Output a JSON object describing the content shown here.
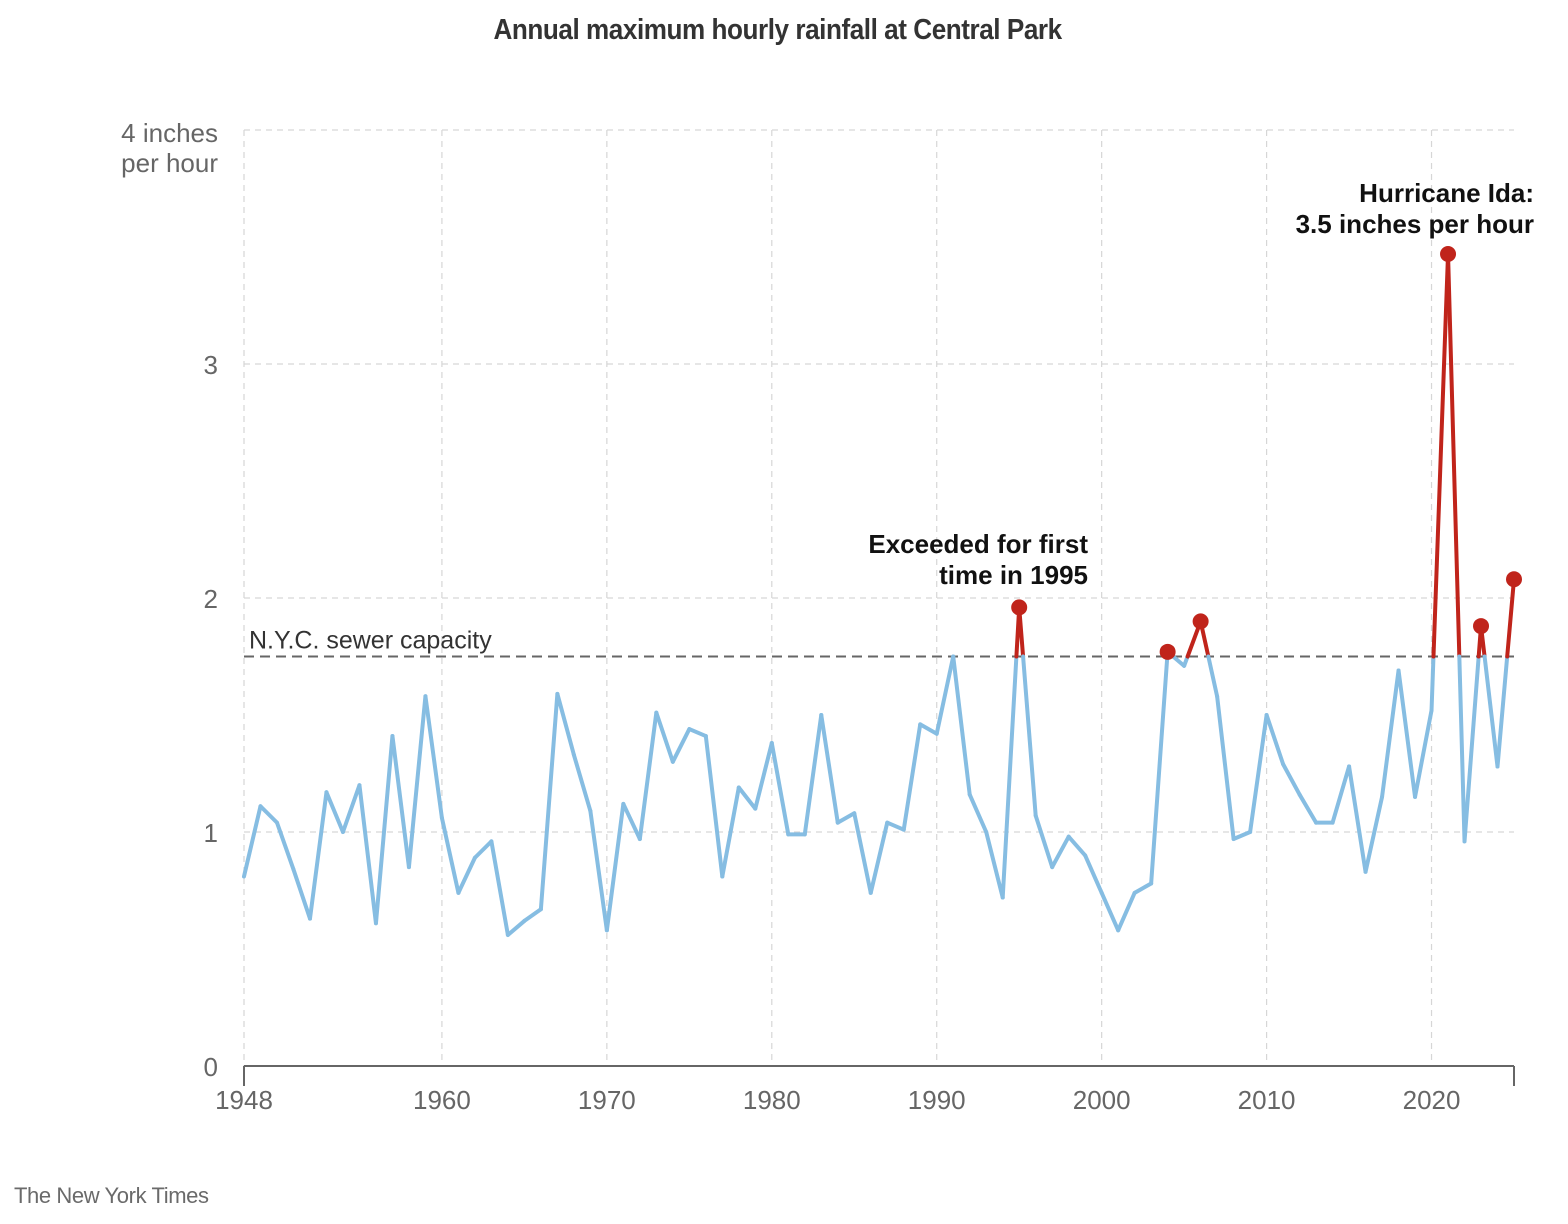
{
  "chart_data": {
    "type": "line",
    "title": "Annual maximum hourly rainfall at Central Park",
    "xlabel": "",
    "ylabel": "",
    "y_unit_label": [
      "4 inches",
      "per hour"
    ],
    "ylim": [
      0,
      4
    ],
    "yticks": [
      0,
      1,
      2,
      3,
      4
    ],
    "ytick_labels": [
      "0",
      "1",
      "2",
      "3",
      ""
    ],
    "xlim": [
      1948,
      2025
    ],
    "xticks": [
      1948,
      1960,
      1970,
      1980,
      1990,
      2000,
      2010,
      2020
    ],
    "xtick_labels": [
      "1948",
      "1960",
      "1970",
      "1980",
      "1990",
      "2000",
      "2010",
      "2020"
    ],
    "grid": true,
    "reference_line": {
      "label": "N.Y.C. sewer capacity",
      "value": 1.75
    },
    "colors": {
      "below": "#86bde2",
      "above": "#c0241b",
      "grid": "#d6d6d6",
      "reference": "#666666",
      "axis": "#666666"
    },
    "x": [
      1948,
      1949,
      1950,
      1951,
      1952,
      1953,
      1954,
      1955,
      1956,
      1957,
      1958,
      1959,
      1960,
      1961,
      1962,
      1963,
      1964,
      1965,
      1966,
      1967,
      1968,
      1969,
      1970,
      1971,
      1972,
      1973,
      1974,
      1975,
      1976,
      1977,
      1978,
      1979,
      1980,
      1981,
      1982,
      1983,
      1984,
      1985,
      1986,
      1987,
      1988,
      1989,
      1990,
      1991,
      1992,
      1993,
      1994,
      1995,
      1996,
      1997,
      1998,
      1999,
      2000,
      2001,
      2002,
      2003,
      2004,
      2005,
      2006,
      2007,
      2008,
      2009,
      2010,
      2011,
      2012,
      2013,
      2014,
      2015,
      2016,
      2017,
      2018,
      2019,
      2020,
      2021,
      2022,
      2023,
      2024,
      2025
    ],
    "series": [
      {
        "name": "Annual maximum hourly rainfall (inches per hour)",
        "values": [
          0.81,
          1.11,
          1.04,
          0.84,
          0.63,
          1.17,
          1.0,
          1.2,
          0.61,
          1.41,
          0.85,
          1.58,
          1.06,
          0.74,
          0.89,
          0.96,
          0.56,
          0.62,
          0.67,
          1.59,
          1.33,
          1.09,
          0.58,
          1.12,
          0.97,
          1.51,
          1.3,
          1.44,
          1.41,
          0.81,
          1.19,
          1.1,
          1.38,
          0.99,
          0.99,
          1.5,
          1.04,
          1.08,
          0.74,
          1.04,
          1.01,
          1.46,
          1.42,
          1.75,
          1.16,
          1.0,
          0.72,
          1.96,
          1.07,
          0.85,
          0.98,
          0.9,
          0.74,
          0.58,
          0.74,
          0.78,
          1.77,
          1.71,
          1.9,
          1.58,
          0.97,
          1.0,
          1.5,
          1.29,
          1.16,
          1.04,
          1.04,
          1.28,
          0.83,
          1.15,
          1.69,
          1.15,
          1.52,
          3.47,
          0.96,
          1.88,
          1.28,
          2.08
        ]
      }
    ],
    "highlighted_points": [
      1995,
      2004,
      2006,
      2021,
      2023,
      2025
    ],
    "annotations": [
      {
        "lines": [
          "Exceeded for first",
          "time in 1995"
        ],
        "x": 1995
      },
      {
        "lines": [
          "Hurricane Ida:",
          "3.5 inches per hour"
        ],
        "x": 2021
      }
    ]
  },
  "source": "The New York Times"
}
